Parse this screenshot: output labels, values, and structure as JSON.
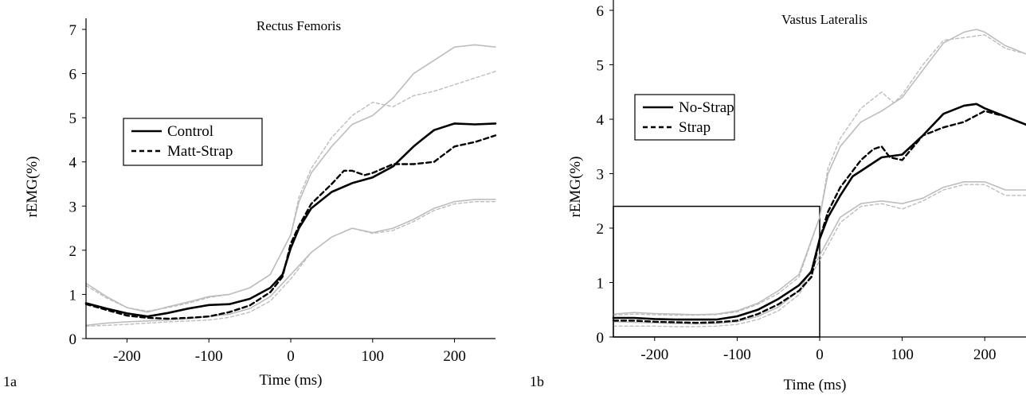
{
  "chart_data": [
    {
      "type": "line",
      "panel_label": "1a",
      "title": "Rectus Femoris",
      "xlabel": "Time (ms)",
      "ylabel": "rEMG(%)",
      "xlim": [
        -250,
        250
      ],
      "ylim": [
        0,
        7
      ],
      "xticks": [
        "-200",
        "-100",
        "0",
        "100",
        "200"
      ],
      "yticks": [
        "0",
        "1",
        "2",
        "3",
        "4",
        "5",
        "6",
        "7"
      ],
      "grid": false,
      "legend_position": "center-left",
      "series": [
        {
          "name": "Control",
          "style": "solid-black",
          "x": [
            -250,
            -225,
            -200,
            -175,
            -150,
            -125,
            -100,
            -75,
            -50,
            -25,
            -10,
            0,
            10,
            25,
            50,
            75,
            100,
            125,
            150,
            160,
            175,
            200,
            225,
            250
          ],
          "y": [
            0.8,
            0.68,
            0.57,
            0.5,
            0.58,
            0.68,
            0.76,
            0.78,
            0.9,
            1.15,
            1.45,
            2.05,
            2.5,
            2.95,
            3.32,
            3.52,
            3.65,
            3.9,
            4.35,
            4.5,
            4.72,
            4.87,
            4.85,
            4.87
          ]
        },
        {
          "name": "Matt-Strap",
          "style": "dashed-black",
          "x": [
            -250,
            -225,
            -200,
            -175,
            -150,
            -125,
            -100,
            -75,
            -50,
            -25,
            -10,
            0,
            10,
            25,
            50,
            65,
            75,
            90,
            100,
            125,
            150,
            175,
            200,
            225,
            250
          ],
          "y": [
            0.78,
            0.65,
            0.52,
            0.47,
            0.45,
            0.47,
            0.5,
            0.6,
            0.75,
            1.05,
            1.4,
            2.15,
            2.55,
            3.05,
            3.5,
            3.8,
            3.8,
            3.7,
            3.75,
            3.95,
            3.95,
            4.0,
            4.35,
            4.45,
            4.6
          ]
        },
        {
          "name": "",
          "style": "solid-gray",
          "x": [
            -250,
            -225,
            -200,
            -175,
            -150,
            -125,
            -100,
            -75,
            -50,
            -25,
            0,
            10,
            25,
            50,
            75,
            100,
            125,
            150,
            175,
            200,
            225,
            250
          ],
          "y": [
            1.25,
            0.95,
            0.7,
            0.6,
            0.72,
            0.83,
            0.95,
            1.0,
            1.15,
            1.45,
            2.35,
            3.1,
            3.75,
            4.35,
            4.85,
            5.05,
            5.45,
            6.0,
            6.3,
            6.6,
            6.65,
            6.6
          ]
        },
        {
          "name": "",
          "style": "dashed-gray",
          "x": [
            -250,
            -225,
            -200,
            -175,
            -150,
            -125,
            -100,
            -75,
            -50,
            -25,
            0,
            10,
            25,
            50,
            75,
            100,
            125,
            150,
            175,
            200,
            225,
            250
          ],
          "y": [
            1.2,
            0.92,
            0.7,
            0.62,
            0.7,
            0.8,
            0.93,
            1.0,
            1.15,
            1.45,
            2.35,
            3.2,
            3.85,
            4.55,
            5.05,
            5.35,
            5.25,
            5.5,
            5.6,
            5.75,
            5.9,
            6.05
          ]
        },
        {
          "name": "",
          "style": "solid-gray",
          "x": [
            -250,
            -225,
            -200,
            -175,
            -150,
            -125,
            -100,
            -75,
            -50,
            -25,
            0,
            25,
            50,
            75,
            100,
            125,
            150,
            175,
            200,
            225,
            250
          ],
          "y": [
            0.3,
            0.35,
            0.38,
            0.4,
            0.42,
            0.45,
            0.5,
            0.55,
            0.68,
            0.95,
            1.45,
            1.95,
            2.3,
            2.5,
            2.4,
            2.5,
            2.7,
            2.95,
            3.1,
            3.15,
            3.15
          ]
        },
        {
          "name": "",
          "style": "dashed-gray",
          "x": [
            -250,
            -225,
            -200,
            -175,
            -150,
            -125,
            -100,
            -75,
            -50,
            -25,
            0,
            25,
            50,
            75,
            100,
            125,
            150,
            175,
            200,
            225,
            250
          ],
          "y": [
            0.28,
            0.3,
            0.32,
            0.35,
            0.38,
            0.4,
            0.42,
            0.48,
            0.6,
            0.85,
            1.35,
            1.95,
            2.3,
            2.5,
            2.38,
            2.45,
            2.65,
            2.9,
            3.05,
            3.1,
            3.1
          ]
        }
      ]
    },
    {
      "type": "line",
      "panel_label": "1b",
      "title": "Vastus Lateralis",
      "xlabel": "Time (ms)",
      "ylabel": "rEMG(%)",
      "xlim": [
        -250,
        250
      ],
      "ylim": [
        0,
        6
      ],
      "xticks": [
        "-200",
        "-100",
        "0",
        "100",
        "200"
      ],
      "yticks": [
        "0",
        "1",
        "2",
        "3",
        "4",
        "5",
        "6"
      ],
      "grid": false,
      "legend_position": "top-left",
      "annotation_box": {
        "x": [
          -250,
          0
        ],
        "y": [
          0,
          2.4
        ]
      },
      "series": [
        {
          "name": "No-Strap",
          "style": "solid-black",
          "x": [
            -250,
            -225,
            -200,
            -175,
            -150,
            -125,
            -100,
            -75,
            -50,
            -25,
            -10,
            0,
            10,
            25,
            40,
            50,
            75,
            100,
            125,
            150,
            175,
            190,
            200,
            225,
            250
          ],
          "y": [
            0.35,
            0.35,
            0.33,
            0.32,
            0.32,
            0.32,
            0.38,
            0.5,
            0.7,
            0.95,
            1.2,
            1.8,
            2.2,
            2.6,
            2.95,
            3.05,
            3.3,
            3.35,
            3.7,
            4.1,
            4.25,
            4.28,
            4.2,
            4.05,
            3.9
          ]
        },
        {
          "name": "Strap",
          "style": "dashed-black",
          "x": [
            -250,
            -225,
            -200,
            -175,
            -150,
            -125,
            -100,
            -75,
            -50,
            -25,
            -10,
            0,
            10,
            25,
            50,
            65,
            75,
            85,
            100,
            125,
            150,
            175,
            200,
            225,
            250
          ],
          "y": [
            0.3,
            0.3,
            0.28,
            0.27,
            0.26,
            0.27,
            0.3,
            0.42,
            0.6,
            0.85,
            1.1,
            1.8,
            2.3,
            2.75,
            3.25,
            3.45,
            3.5,
            3.3,
            3.25,
            3.7,
            3.85,
            3.95,
            4.15,
            4.05,
            3.9
          ]
        },
        {
          "name": "",
          "style": "solid-gray",
          "x": [
            -250,
            -225,
            -200,
            -175,
            -150,
            -125,
            -100,
            -75,
            -50,
            -25,
            0,
            10,
            25,
            50,
            75,
            100,
            125,
            150,
            175,
            190,
            200,
            225,
            250
          ],
          "y": [
            0.42,
            0.45,
            0.43,
            0.42,
            0.41,
            0.42,
            0.48,
            0.62,
            0.85,
            1.15,
            2.2,
            3.0,
            3.5,
            3.95,
            4.15,
            4.4,
            4.9,
            5.4,
            5.6,
            5.65,
            5.6,
            5.35,
            5.2
          ]
        },
        {
          "name": "",
          "style": "dashed-gray",
          "x": [
            -250,
            -225,
            -200,
            -175,
            -150,
            -125,
            -100,
            -75,
            -50,
            -25,
            0,
            10,
            25,
            50,
            75,
            90,
            100,
            125,
            150,
            175,
            200,
            225,
            250
          ],
          "y": [
            0.4,
            0.42,
            0.41,
            0.4,
            0.4,
            0.41,
            0.46,
            0.6,
            0.8,
            1.1,
            2.2,
            3.1,
            3.65,
            4.2,
            4.5,
            4.3,
            4.45,
            5.0,
            5.45,
            5.5,
            5.55,
            5.3,
            5.2
          ]
        },
        {
          "name": "",
          "style": "solid-gray",
          "x": [
            -250,
            -225,
            -200,
            -175,
            -150,
            -125,
            -100,
            -75,
            -50,
            -25,
            0,
            25,
            50,
            75,
            100,
            125,
            150,
            175,
            200,
            225,
            250
          ],
          "y": [
            0.28,
            0.27,
            0.26,
            0.25,
            0.24,
            0.25,
            0.28,
            0.38,
            0.55,
            0.85,
            1.5,
            2.2,
            2.45,
            2.5,
            2.45,
            2.55,
            2.75,
            2.85,
            2.85,
            2.7,
            2.7
          ]
        },
        {
          "name": "",
          "style": "dashed-gray",
          "x": [
            -250,
            -225,
            -200,
            -175,
            -150,
            -125,
            -100,
            -75,
            -50,
            -25,
            0,
            25,
            50,
            75,
            100,
            125,
            150,
            175,
            200,
            225,
            250
          ],
          "y": [
            0.2,
            0.2,
            0.2,
            0.19,
            0.19,
            0.2,
            0.23,
            0.32,
            0.48,
            0.78,
            1.4,
            2.1,
            2.4,
            2.45,
            2.35,
            2.5,
            2.7,
            2.8,
            2.8,
            2.6,
            2.6
          ]
        }
      ]
    }
  ]
}
